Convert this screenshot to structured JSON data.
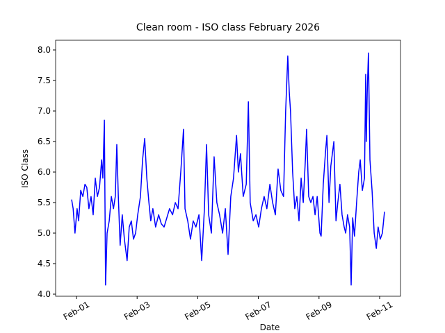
{
  "chart_data": {
    "type": "line",
    "title": "Clean room - ISO class February 2026",
    "xlabel": "Date",
    "ylabel": "ISO Class",
    "color": "blue",
    "x": [
      0.84,
      0.89,
      0.95,
      1.02,
      1.07,
      1.14,
      1.21,
      1.28,
      1.34,
      1.41,
      1.48,
      1.55,
      1.62,
      1.69,
      1.76,
      1.83,
      1.87,
      1.92,
      1.94,
      1.96,
      2.01,
      2.08,
      2.15,
      2.22,
      2.28,
      2.33,
      2.38,
      2.44,
      2.51,
      2.58,
      2.67,
      2.74,
      2.81,
      2.88,
      2.95,
      3.02,
      3.11,
      3.18,
      3.25,
      3.32,
      3.39,
      3.45,
      3.52,
      3.61,
      3.71,
      3.8,
      3.89,
      3.98,
      4.07,
      4.17,
      4.26,
      4.35,
      4.44,
      4.53,
      4.58,
      4.67,
      4.76,
      4.85,
      4.94,
      5.04,
      5.13,
      5.22,
      5.29,
      5.36,
      5.45,
      5.54,
      5.63,
      5.72,
      5.82,
      5.91,
      6.0,
      6.09,
      6.18,
      6.28,
      6.34,
      6.41,
      6.5,
      6.6,
      6.67,
      6.73,
      6.83,
      6.92,
      7.01,
      7.1,
      7.19,
      7.28,
      7.38,
      7.47,
      7.56,
      7.65,
      7.74,
      7.83,
      7.9,
      7.97,
      8.02,
      8.06,
      8.13,
      8.2,
      8.27,
      8.34,
      8.41,
      8.48,
      8.55,
      8.59,
      8.66,
      8.73,
      8.8,
      8.87,
      8.94,
      9.03,
      9.07,
      9.14,
      9.21,
      9.26,
      9.33,
      9.39,
      9.49,
      9.56,
      9.62,
      9.69,
      9.76,
      9.83,
      9.88,
      9.94,
      10.01,
      10.06,
      10.11,
      10.17,
      10.24,
      10.31,
      10.36,
      10.43,
      10.5,
      10.54,
      10.56,
      10.59,
      10.63,
      10.68,
      10.75,
      10.82,
      10.89,
      10.95,
      11.02,
      11.09,
      11.16
    ],
    "values": [
      5.55,
      5.4,
      5.0,
      5.4,
      5.2,
      5.7,
      5.6,
      5.8,
      5.75,
      5.4,
      5.6,
      5.3,
      5.9,
      5.6,
      5.75,
      6.2,
      5.9,
      6.85,
      5.5,
      4.15,
      5.0,
      5.2,
      5.6,
      5.4,
      5.6,
      6.45,
      5.6,
      4.8,
      5.3,
      4.9,
      4.55,
      5.1,
      5.2,
      4.9,
      5.0,
      5.3,
      5.6,
      6.2,
      6.55,
      5.9,
      5.5,
      5.2,
      5.4,
      5.1,
      5.3,
      5.15,
      5.1,
      5.25,
      5.4,
      5.3,
      5.5,
      5.4,
      6.0,
      6.7,
      5.4,
      5.2,
      4.9,
      5.2,
      5.1,
      5.3,
      4.55,
      5.4,
      6.45,
      5.3,
      5.0,
      6.25,
      5.5,
      5.3,
      5.0,
      5.4,
      4.65,
      5.6,
      5.9,
      6.6,
      6.0,
      6.3,
      5.6,
      5.8,
      7.15,
      5.5,
      5.2,
      5.3,
      5.1,
      5.4,
      5.6,
      5.4,
      5.8,
      5.5,
      5.3,
      6.05,
      5.7,
      5.6,
      7.0,
      7.9,
      7.3,
      7.0,
      6.0,
      5.4,
      5.6,
      5.2,
      5.9,
      5.5,
      6.2,
      6.7,
      5.6,
      5.5,
      5.6,
      5.3,
      5.6,
      5.0,
      4.95,
      5.8,
      6.3,
      6.6,
      5.5,
      6.1,
      6.5,
      5.2,
      5.5,
      5.8,
      5.3,
      5.1,
      5.0,
      5.3,
      5.1,
      4.15,
      5.25,
      4.95,
      5.5,
      6.0,
      6.2,
      5.7,
      5.9,
      7.6,
      6.5,
      7.3,
      7.95,
      6.2,
      5.7,
      5.0,
      4.75,
      5.1,
      4.9,
      5.0,
      5.35
    ],
    "xlim": [
      0.312,
      11.688
    ],
    "xticks": [
      {
        "value": 1,
        "label": "Feb-01"
      },
      {
        "value": 3,
        "label": "Feb-03"
      },
      {
        "value": 5,
        "label": "Feb-05"
      },
      {
        "value": 7,
        "label": "Feb-07"
      },
      {
        "value": 9,
        "label": "Feb-09"
      },
      {
        "value": 11,
        "label": "Feb-11"
      }
    ],
    "ylim": [
      3.966,
      8.159
    ],
    "yticks": [
      {
        "value": 4,
        "label": "4.0"
      },
      4.5,
      {
        "value": 5,
        "label": "5.0"
      },
      5.5,
      {
        "value": 6,
        "label": "6.0"
      },
      6.5,
      {
        "value": 7,
        "label": "7.0"
      },
      7.5,
      {
        "value": 8,
        "label": "8.0"
      }
    ]
  }
}
